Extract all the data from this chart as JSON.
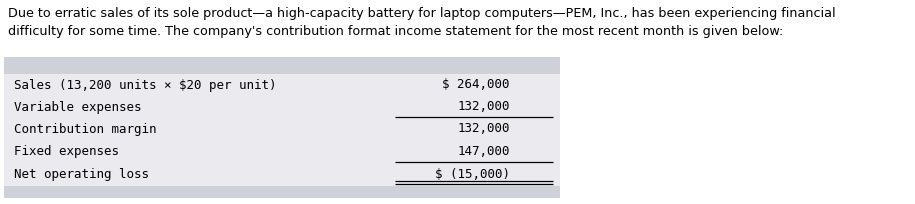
{
  "intro_text": "Due to erratic sales of its sole product—a high-capacity battery for laptop computers—PEM, Inc., has been experiencing financial\ndifficulty for some time. The company's contribution format income statement for the most recent month is given below:",
  "rows": [
    {
      "label": "Sales (13,200 units × $20 per unit)",
      "value": "$ 264,000",
      "sep_below": false,
      "double_ul": false
    },
    {
      "label": "Variable expenses",
      "value": "132,000",
      "sep_below": true,
      "double_ul": false
    },
    {
      "label": "Contribution margin",
      "value": "132,000",
      "sep_below": false,
      "double_ul": false
    },
    {
      "label": "Fixed expenses",
      "value": "147,000",
      "sep_below": true,
      "double_ul": false
    },
    {
      "label": "Net operating loss",
      "value": "$ (15,000)",
      "sep_below": false,
      "double_ul": true
    }
  ],
  "table_bg_color": "#d0d0d8",
  "row_bg_color": "#ebebef",
  "font_family": "monospace",
  "intro_font_size": 9.2,
  "table_font_size": 9.0,
  "fig_width": 9.15,
  "fig_height": 2.04,
  "dpi": 100
}
